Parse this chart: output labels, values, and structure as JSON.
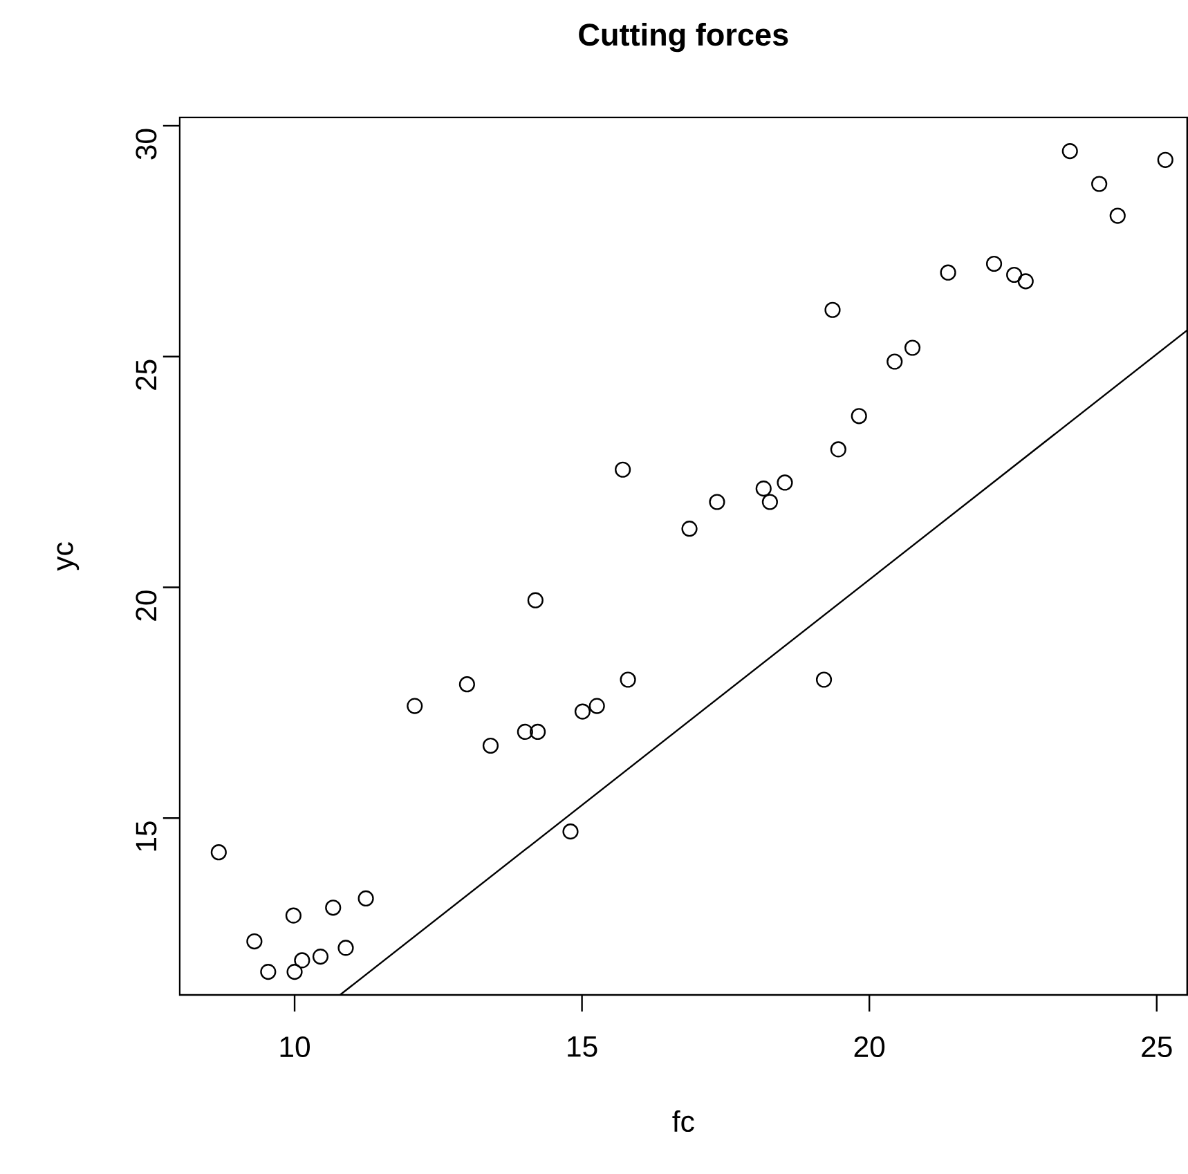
{
  "chart_data": {
    "type": "scatter",
    "title": "Cutting forces",
    "xlabel": "fc",
    "ylabel": "yc",
    "xlim": [
      8.0,
      25.53
    ],
    "ylim": [
      11.17,
      30.18
    ],
    "xticks": [
      10,
      15,
      20,
      25
    ],
    "yticks": [
      15,
      20,
      25,
      30
    ],
    "marker": "circle",
    "series": [
      {
        "color": "#000000",
        "x": [
          8.68,
          9.3,
          9.54,
          9.98,
          10.0,
          10.13,
          10.45,
          10.67,
          10.89,
          11.24,
          14.8,
          12.09,
          13.0,
          13.41,
          14.01,
          14.23,
          14.19,
          15.01,
          15.26,
          15.71,
          15.8,
          16.87,
          17.35,
          18.16,
          18.27,
          18.53,
          19.21,
          19.46,
          19.82,
          20.44,
          20.75,
          19.36,
          21.37,
          22.17,
          22.52,
          22.72,
          23.49,
          24.0,
          24.32,
          25.15
        ],
        "values": [
          14.26,
          12.33,
          11.67,
          12.89,
          11.67,
          11.92,
          12.0,
          13.06,
          12.19,
          13.26,
          14.71,
          17.43,
          17.9,
          16.57,
          16.87,
          16.87,
          19.72,
          17.31,
          17.43,
          22.55,
          18.0,
          21.27,
          21.85,
          22.14,
          21.85,
          22.27,
          18.0,
          22.99,
          23.71,
          24.89,
          25.19,
          26.01,
          26.82,
          27.01,
          26.77,
          26.63,
          29.45,
          28.74,
          28.05,
          29.26
        ]
      },
      {
        "type": "line",
        "color": "#000000",
        "marker": "none",
        "x": [
          10.79,
          25.53
        ],
        "values": [
          11.17,
          25.57
        ]
      }
    ]
  }
}
